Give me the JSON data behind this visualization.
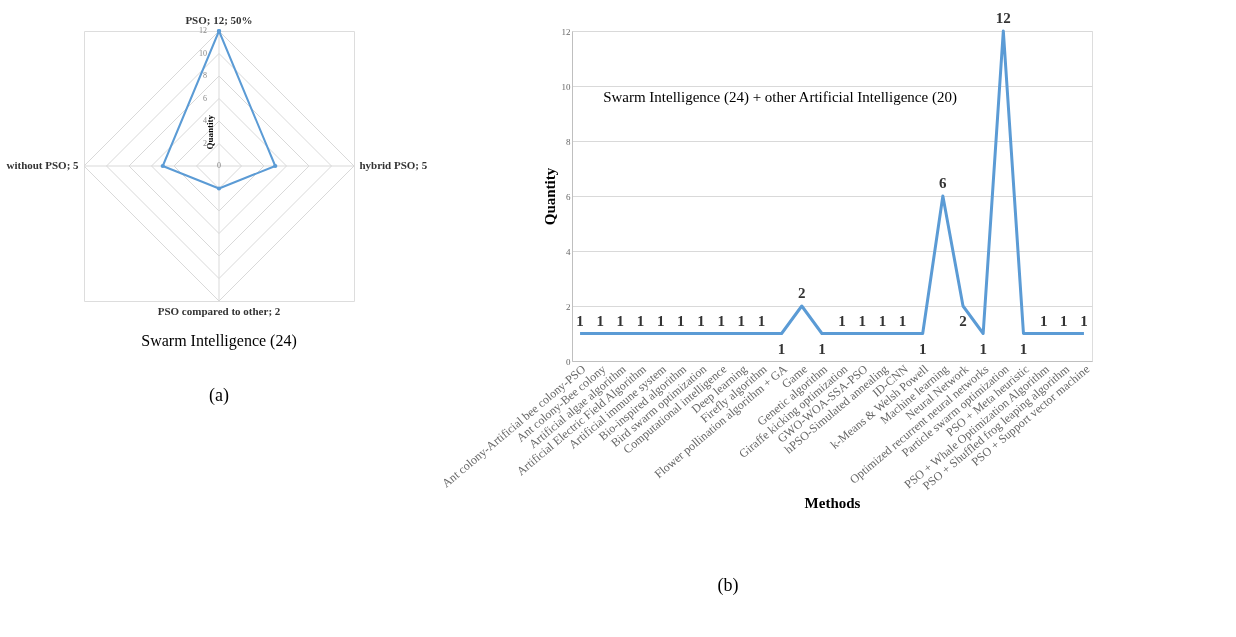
{
  "chart_data": [
    {
      "type": "radar",
      "title": "Swarm Intelligence (24)",
      "ylabel": "Quantity",
      "categories": [
        "PSO; 12; 50%",
        "hybrid PSO; 5",
        "PSO compared to other; 2",
        "without PSO; 5"
      ],
      "series": [
        {
          "color": "#5b9bd5",
          "values": [
            12,
            5,
            2,
            5
          ]
        }
      ],
      "ylim": [
        0,
        12
      ],
      "yticks": [
        0,
        2,
        4,
        6,
        8,
        10,
        12
      ],
      "grid": true,
      "marker": "circle",
      "annotations": [
        "(a)"
      ]
    },
    {
      "type": "line",
      "title": "Swarm Intelligence (24) + other Artificial Intelligence (20)",
      "xlabel": "Methods",
      "ylabel": "Quantity",
      "categories": [
        "Ant colony-Artificial bee colony-PSO",
        "Ant colony-Bee colony",
        "Artificial algae algorithm",
        "Artificial Electric Field Algorithm",
        "Artificial immune system",
        "Bio-inspired algorithm",
        "Bird swarm optimization",
        "Computational intelligence",
        "Deep learning",
        "Firefly algorithm",
        "Flower pollination algorithm + GA",
        "Game",
        "Genetic algorithm",
        "Giraffe kicking optimization",
        "GWO-WOA-SSA-PSO",
        "hPSO-Simulated annealing",
        "ID-CNN",
        "k-Means & Welsh Powell",
        "Machine learning",
        "Neural Network",
        "Optimized recurrent neural networks",
        "Particle swarm optimization",
        "PSO + Meta heuristic",
        "PSO + Whale Optimization Algorithm",
        "PSO + Shuffled frog leaping algorithm",
        "PSO + Support vector machine"
      ],
      "series": [
        {
          "color": "#5b9bd5",
          "values": [
            1,
            1,
            1,
            1,
            1,
            1,
            1,
            1,
            1,
            1,
            1,
            2,
            1,
            1,
            1,
            1,
            1,
            1,
            6,
            2,
            1,
            12,
            1,
            1,
            1,
            1
          ]
        }
      ],
      "ylim": [
        0,
        12
      ],
      "yticks": [
        0,
        2,
        4,
        6,
        8,
        10,
        12
      ],
      "grid": "y",
      "data_labels": true,
      "annotations": [
        "(b)"
      ]
    }
  ]
}
